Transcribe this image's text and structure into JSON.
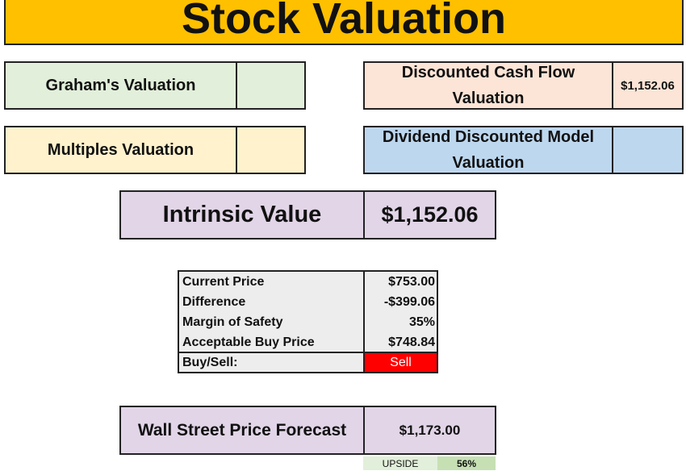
{
  "header": {
    "title": "Stock Valuation"
  },
  "valuations": {
    "graham": {
      "label": "Graham's Valuation"
    },
    "multiples": {
      "label": "Multiples Valuation"
    },
    "dcf": {
      "label": "Discounted Cash Flow Valuation",
      "value": "$1,152.06"
    },
    "ddm": {
      "label": "Dividend Discounted Model Valuation"
    }
  },
  "intrinsic": {
    "label": "Intrinsic Value",
    "value": "$1,152.06"
  },
  "summary": {
    "rows": [
      [
        "Current Price",
        "$753.00"
      ],
      [
        "Difference",
        "-$399.06"
      ],
      [
        "Margin of Safety",
        "35%"
      ],
      [
        "Acceptable Buy Price",
        "$748.84"
      ]
    ],
    "signal": {
      "label": "Buy/Sell:",
      "value": "Sell"
    }
  },
  "forecast": {
    "label": "Wall Street Price Forecast",
    "value": "$1,173.00",
    "upside_label": "UPSIDE",
    "upside": "56%"
  }
}
